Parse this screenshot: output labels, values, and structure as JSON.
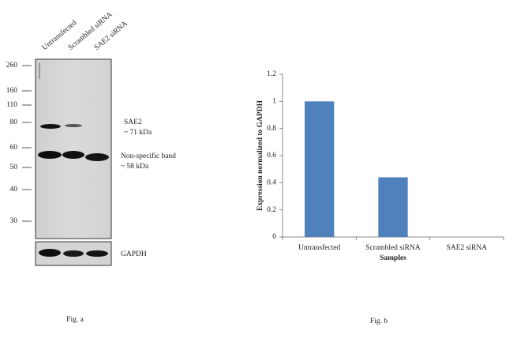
{
  "blot": {
    "lanes": [
      "Untransfected",
      "Scrambled siRNA",
      "SAE2 siRNA"
    ],
    "markers": [
      260,
      160,
      110,
      80,
      60,
      50,
      40,
      30
    ],
    "annotations": [
      "SAE2",
      "~ 71 kDa",
      "Non-specific band",
      "~ 58 kDa",
      "GAPDH"
    ],
    "caption": "Fig. a"
  },
  "chart_data": {
    "type": "bar",
    "categories": [
      "Untransfected",
      "Scrambled siRNA",
      "SAE2 siRNA"
    ],
    "values": [
      1,
      0.44,
      0
    ],
    "color": "#4f81bd",
    "xlabel": "Samples",
    "ylabel": "Expression  normalized to GAPDH",
    "ylim": [
      0,
      1.2
    ],
    "yticks": [
      0,
      0.2,
      0.4,
      0.6,
      0.8,
      1,
      1.2
    ],
    "grid": false,
    "caption": "Fig. b"
  }
}
